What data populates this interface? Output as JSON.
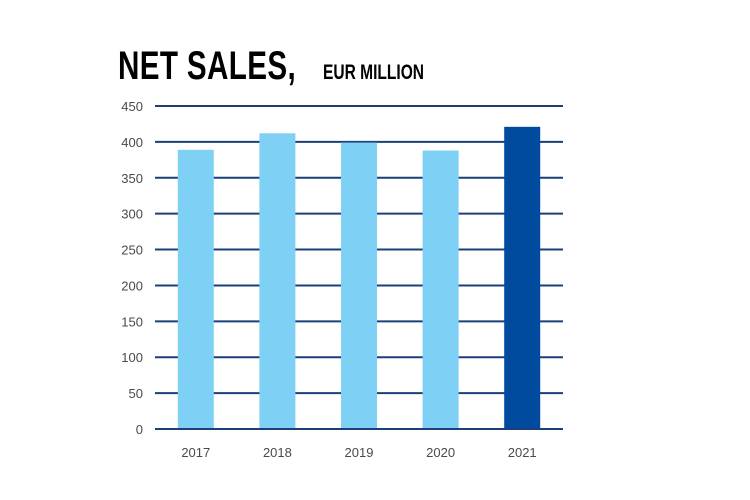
{
  "header": {
    "title": "NET SALES,",
    "subtitle": "EUR MILLION"
  },
  "chart_data": {
    "type": "bar",
    "title": "NET SALES, EUR MILLION",
    "xlabel": "",
    "ylabel": "",
    "categories": [
      "2017",
      "2018",
      "2019",
      "2020",
      "2021"
    ],
    "values": [
      389,
      412,
      399,
      388,
      421
    ],
    "ylim": [
      0,
      450
    ],
    "yticks": [
      0,
      50,
      100,
      150,
      200,
      250,
      300,
      350,
      400,
      450
    ],
    "grid": true,
    "legend": "none",
    "colors": {
      "bar": "#7fd0f5",
      "highlight_bar": "#004b9e",
      "grid": "#1a3f7a",
      "tick_text": "#4a4a4a"
    },
    "highlight_index": 4
  }
}
